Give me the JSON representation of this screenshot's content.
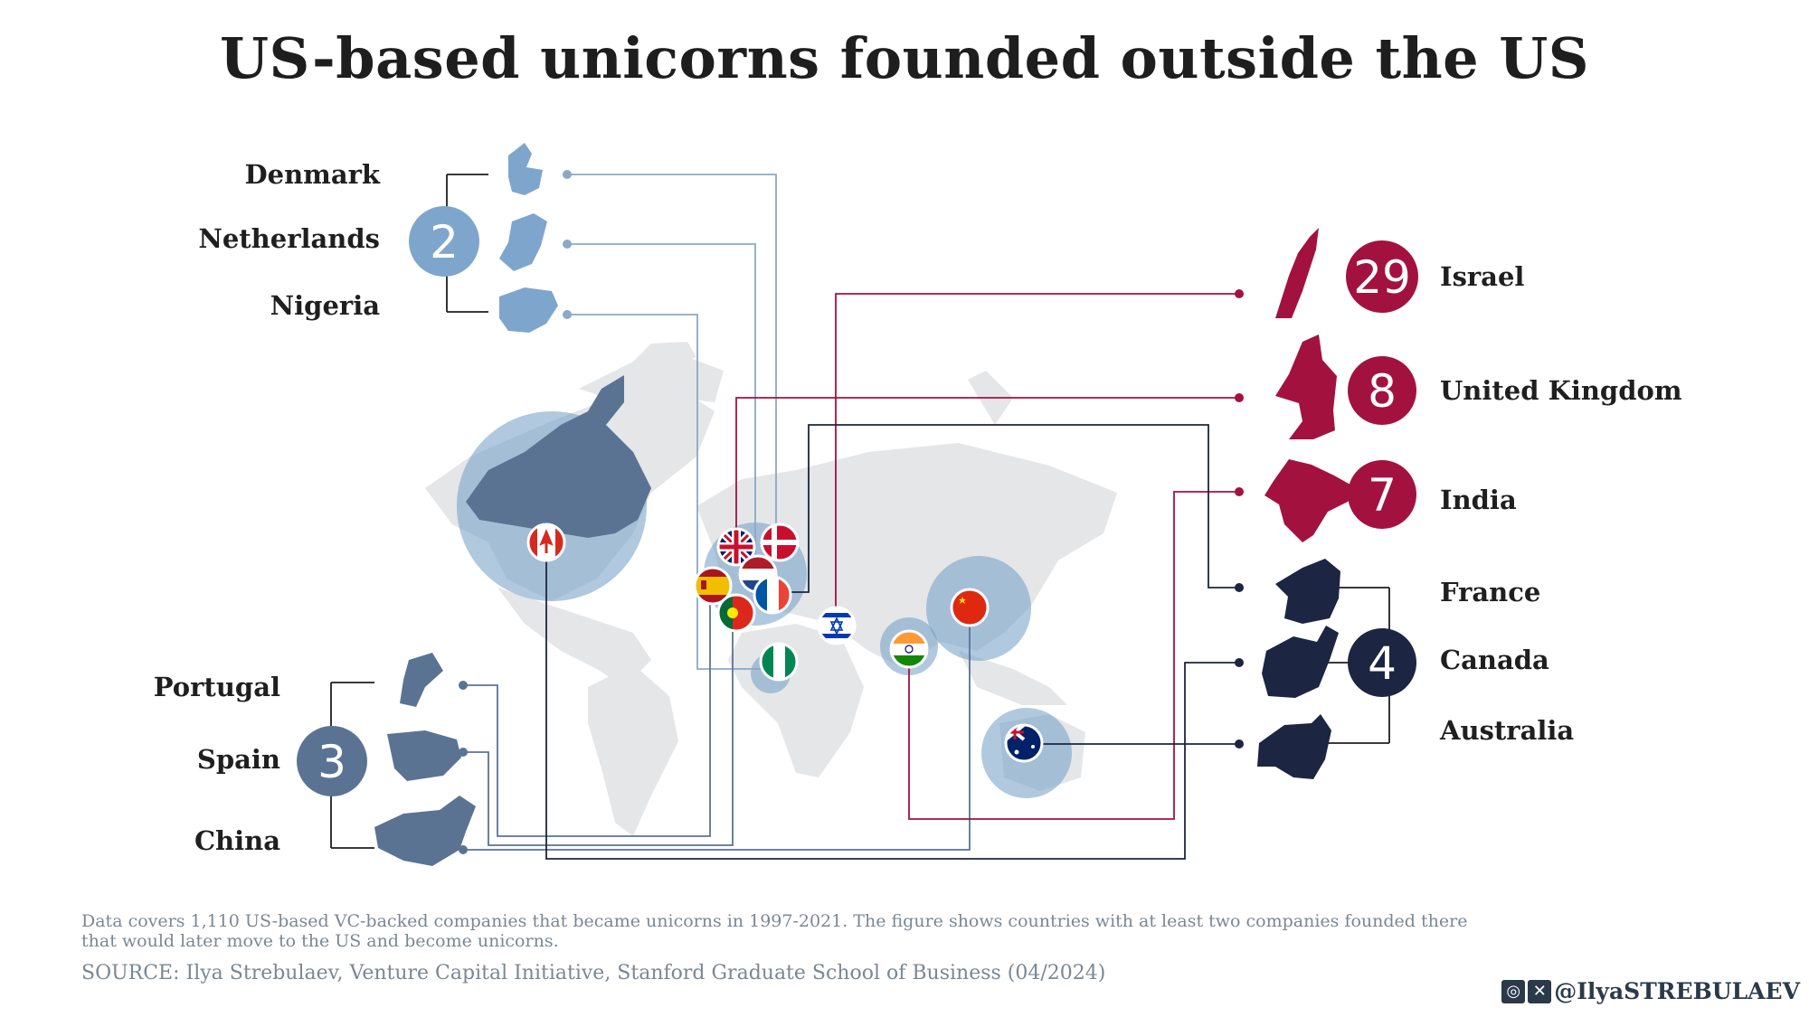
{
  "title": "US-based unicorns founded outside the US",
  "colors": {
    "light_blue": "#7ea6cd",
    "slate": "#5b7393",
    "navy": "#1c2541",
    "crimson": "#a3123f",
    "map": "#e4e6e8"
  },
  "chart_data": {
    "type": "grouped-bubble",
    "title": "US-based unicorns founded outside the US",
    "groups": [
      {
        "value": 29,
        "countries": [
          "Israel"
        ],
        "color": "crimson"
      },
      {
        "value": 8,
        "countries": [
          "United Kingdom"
        ],
        "color": "crimson"
      },
      {
        "value": 7,
        "countries": [
          "India"
        ],
        "color": "crimson"
      },
      {
        "value": 4,
        "countries": [
          "France",
          "Canada",
          "Australia"
        ],
        "color": "navy"
      },
      {
        "value": 3,
        "countries": [
          "Portugal",
          "Spain",
          "China"
        ],
        "color": "slate"
      },
      {
        "value": 2,
        "countries": [
          "Denmark",
          "Netherlands",
          "Nigeria"
        ],
        "color": "light_blue"
      }
    ]
  },
  "footer": {
    "note": "Data covers 1,110 US-based VC-backed companies that became unicorns in 1997-2021. The figure shows countries with at least two companies founded there that would later move to the US and become unicorns.",
    "source": "SOURCE: Ilya Strebulaev, Venture Capital Initiative, Stanford Graduate School of Business (04/2024)",
    "handle": "@IlyaSTREBULAEV"
  },
  "icons": [
    "instagram-icon",
    "x-icon"
  ]
}
